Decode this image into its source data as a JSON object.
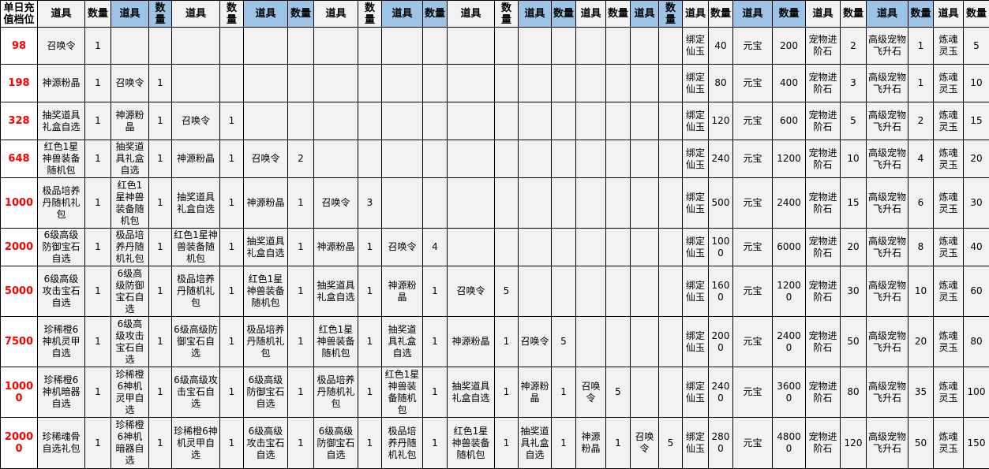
{
  "header": {
    "tier_label": "单日充值档位",
    "item_label": "道具",
    "qty_label": "数量"
  },
  "colors": {
    "header_alt": "#9dc3e6",
    "tier_text": "#ff0000",
    "cell_bg": "#f2f2f2"
  },
  "rows": [
    {
      "tier": "98",
      "items": [
        [
          "召唤令",
          "1"
        ],
        null,
        null,
        null,
        null,
        null,
        null,
        null,
        null,
        null,
        [
          "绑定仙玉",
          "40"
        ],
        [
          "元宝",
          "200"
        ],
        [
          "宠物进阶石",
          "2"
        ],
        [
          "高级宠物飞升石",
          "1"
        ],
        [
          "炼魂灵玉",
          "5"
        ]
      ]
    },
    {
      "tier": "198",
      "items": [
        [
          "神源粉晶",
          "1"
        ],
        [
          "召唤令",
          "1"
        ],
        null,
        null,
        null,
        null,
        null,
        null,
        null,
        null,
        [
          "绑定仙玉",
          "80"
        ],
        [
          "元宝",
          "400"
        ],
        [
          "宠物进阶石",
          "3"
        ],
        [
          "高级宠物飞升石",
          "1"
        ],
        [
          "炼魂灵玉",
          "10"
        ]
      ]
    },
    {
      "tier": "328",
      "items": [
        [
          "抽奖道具礼盒自选",
          "1"
        ],
        [
          "神源粉晶",
          "1"
        ],
        [
          "召唤令",
          "1"
        ],
        null,
        null,
        null,
        null,
        null,
        null,
        null,
        [
          "绑定仙玉",
          "120"
        ],
        [
          "元宝",
          "600"
        ],
        [
          "宠物进阶石",
          "5"
        ],
        [
          "高级宠物飞升石",
          "2"
        ],
        [
          "炼魂灵玉",
          "15"
        ]
      ]
    },
    {
      "tier": "648",
      "items": [
        [
          "红色1星神兽装备随机包",
          "1"
        ],
        [
          "抽奖道具礼盒自选",
          "1"
        ],
        [
          "神源粉晶",
          "1"
        ],
        [
          "召唤令",
          "2"
        ],
        null,
        null,
        null,
        null,
        null,
        null,
        [
          "绑定仙玉",
          "240"
        ],
        [
          "元宝",
          "1200"
        ],
        [
          "宠物进阶石",
          "10"
        ],
        [
          "高级宠物飞升石",
          "4"
        ],
        [
          "炼魂灵玉",
          "20"
        ]
      ]
    },
    {
      "tier": "1000",
      "items": [
        [
          "极品培养丹随机礼包",
          "1"
        ],
        [
          "红色1星神兽装备随机包",
          "1"
        ],
        [
          "抽奖道具礼盒自选",
          "1"
        ],
        [
          "神源粉晶",
          "1"
        ],
        [
          "召唤令",
          "3"
        ],
        null,
        null,
        null,
        null,
        null,
        [
          "绑定仙玉",
          "500"
        ],
        [
          "元宝",
          "2400"
        ],
        [
          "宠物进阶石",
          "15"
        ],
        [
          "高级宠物飞升石",
          "6"
        ],
        [
          "炼魂灵玉",
          "30"
        ]
      ]
    },
    {
      "tier": "2000",
      "items": [
        [
          "6级高级防御宝石自选",
          "1"
        ],
        [
          "极品培养丹随机礼包",
          "1"
        ],
        [
          "红色1星神兽装备随机包",
          "1"
        ],
        [
          "抽奖道具礼盒自选",
          "1"
        ],
        [
          "神源粉晶",
          "1"
        ],
        [
          "召唤令",
          "4"
        ],
        null,
        null,
        null,
        null,
        [
          "绑定仙玉",
          "1000"
        ],
        [
          "元宝",
          "6000"
        ],
        [
          "宠物进阶石",
          "20"
        ],
        [
          "高级宠物飞升石",
          "8"
        ],
        [
          "炼魂灵玉",
          "40"
        ]
      ]
    },
    {
      "tier": "5000",
      "items": [
        [
          "6级高级攻击宝石自选",
          "1"
        ],
        [
          "6级高级防御宝石自选",
          "1"
        ],
        [
          "极品培养丹随机礼包",
          "1"
        ],
        [
          "红色1星神兽装备随机包",
          "1"
        ],
        [
          "抽奖道具礼盒自选",
          "1"
        ],
        [
          "神源粉晶",
          "1"
        ],
        [
          "召唤令",
          "5"
        ],
        null,
        null,
        null,
        [
          "绑定仙玉",
          "1600"
        ],
        [
          "元宝",
          "12000"
        ],
        [
          "宠物进阶石",
          "30"
        ],
        [
          "高级宠物飞升石",
          "10"
        ],
        [
          "炼魂灵玉",
          "60"
        ]
      ]
    },
    {
      "tier": "7500",
      "items": [
        [
          "珍稀橙6神机灵甲自选",
          "1"
        ],
        [
          "6级高级攻击宝石自选",
          "1"
        ],
        [
          "6级高级防御宝石自选",
          "1"
        ],
        [
          "极品培养丹随机礼包",
          "1"
        ],
        [
          "红色1星神兽装备随机包",
          "1"
        ],
        [
          "抽奖道具礼盒自选",
          "1"
        ],
        [
          "神源粉晶",
          "1"
        ],
        [
          "召唤令",
          "5"
        ],
        null,
        null,
        [
          "绑定仙玉",
          "2000"
        ],
        [
          "元宝",
          "24000"
        ],
        [
          "宠物进阶石",
          "50"
        ],
        [
          "高级宠物飞升石",
          "20"
        ],
        [
          "炼魂灵玉",
          "80"
        ]
      ]
    },
    {
      "tier": "10000",
      "items": [
        [
          "珍稀橙6神机暗器自选",
          "1"
        ],
        [
          "珍稀橙6神机灵甲自选",
          "1"
        ],
        [
          "6级高级攻击宝石自选",
          "1"
        ],
        [
          "6级高级防御宝石自选",
          "1"
        ],
        [
          "极品培养丹随机礼包",
          "1"
        ],
        [
          "红色1星神兽装备随机包",
          "1"
        ],
        [
          "抽奖道具礼盒自选",
          "1"
        ],
        [
          "神源粉晶",
          "1"
        ],
        [
          "召唤令",
          "5"
        ],
        null,
        [
          "绑定仙玉",
          "2400"
        ],
        [
          "元宝",
          "36000"
        ],
        [
          "宠物进阶石",
          "80"
        ],
        [
          "高级宠物飞升石",
          "35"
        ],
        [
          "炼魂灵玉",
          "100"
        ]
      ]
    },
    {
      "tier": "20000",
      "items": [
        [
          "珍稀魂骨自选礼包",
          "1"
        ],
        [
          "珍稀橙6神机暗器自选",
          "1"
        ],
        [
          "珍稀橙6神机灵甲自选",
          "1"
        ],
        [
          "6级高级攻击宝石自选",
          "1"
        ],
        [
          "6级高级防御宝石自选",
          "1"
        ],
        [
          "极品培养丹随机礼包",
          "1"
        ],
        [
          "红色1星神兽装备随机包",
          "1"
        ],
        [
          "抽奖道具礼盒自选",
          "1"
        ],
        [
          "神源粉晶",
          "1"
        ],
        [
          "召唤令",
          "5"
        ],
        [
          "绑定仙玉",
          "2800"
        ],
        [
          "元宝",
          "48000"
        ],
        [
          "宠物进阶石",
          "120"
        ],
        [
          "高级宠物飞升石",
          "50"
        ],
        [
          "炼魂灵玉",
          "150"
        ]
      ]
    }
  ]
}
